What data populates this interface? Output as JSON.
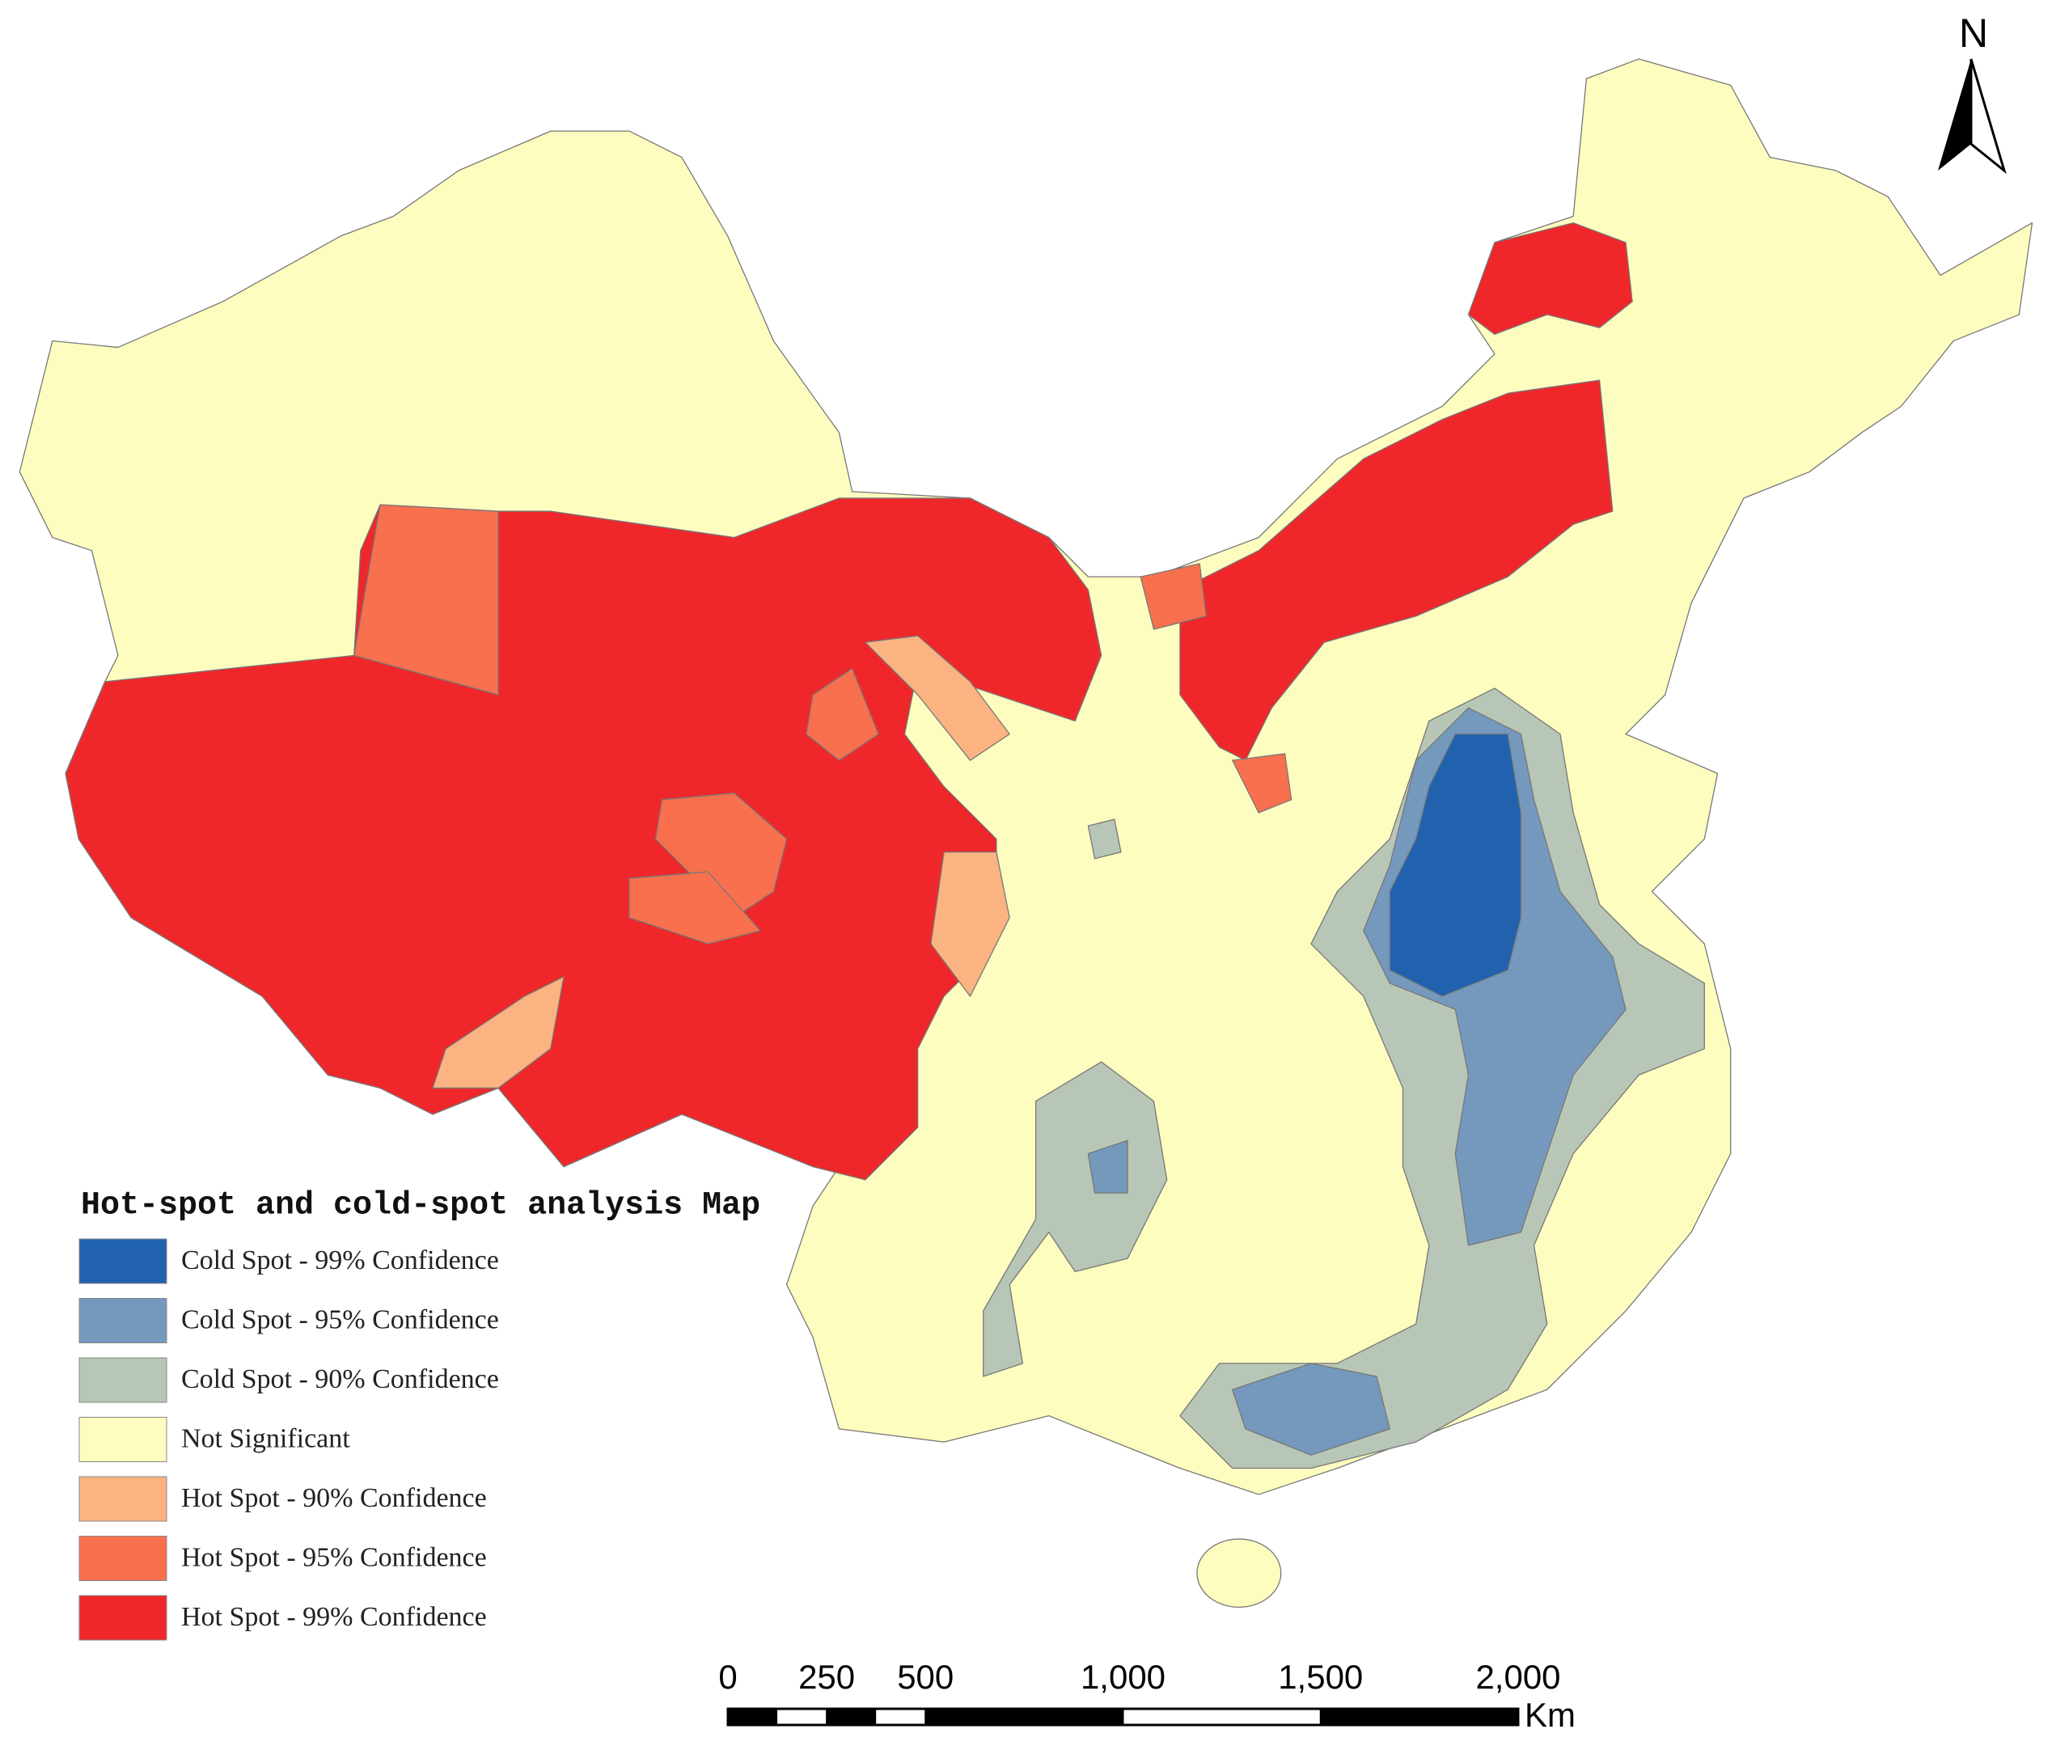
{
  "legend": {
    "title": "Hot-spot and cold-spot analysis Map",
    "items": [
      {
        "label": "Cold Spot - 99% Confidence",
        "color": "#2062ad"
      },
      {
        "label": "Cold Spot - 95% Confidence",
        "color": "#7598bd"
      },
      {
        "label": "Cold Spot - 90% Confidence",
        "color": "#b7c6b6"
      },
      {
        "label": "Not Significant",
        "color": "#fefdc0"
      },
      {
        "label": "Hot Spot - 90% Confidence",
        "color": "#fbb381"
      },
      {
        "label": "Hot Spot - 95% Confidence",
        "color": "#f8704e"
      },
      {
        "label": "Hot Spot - 99% Confidence",
        "color": "#f0272a"
      }
    ]
  },
  "north_arrow": {
    "label": "N"
  },
  "scale_bar": {
    "ticks": [
      0,
      250,
      500,
      {
        "value": 1000,
        "label": "1,000"
      },
      {
        "value": 1500,
        "label": "1,500"
      },
      {
        "value": 2000,
        "label": "2,000"
      }
    ],
    "unit": "Km"
  }
}
